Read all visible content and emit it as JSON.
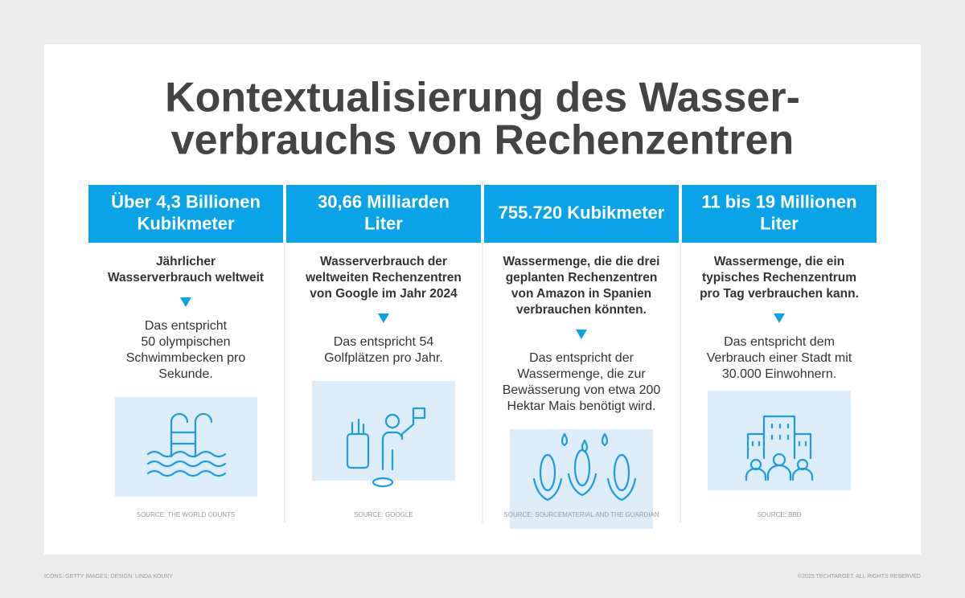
{
  "title": [
    "Kontextualisierung des Wasser-",
    "verbrauchs von Rechenzentren"
  ],
  "columns": [
    {
      "heading": [
        "Über 4,3 Billionen",
        "Kubikmeter"
      ],
      "description": [
        "Jährlicher",
        "Wasserverbrauch weltweit"
      ],
      "equivalent": [
        "Das entspricht",
        "50 olympischen",
        "Schwimmbecken pro",
        "Sekunde."
      ],
      "source": "SOURCE: THE WORLD COUNTS"
    },
    {
      "heading": [
        "30,66 Milliarden",
        "Liter"
      ],
      "description": [
        "Wasserverbrauch der",
        "weltweiten Rechenzentren",
        "von Google im Jahr 2024"
      ],
      "equivalent": [
        "Das entspricht 54",
        "Golfplätzen pro Jahr."
      ],
      "source": "SOURCE: GOOGLE"
    },
    {
      "heading": [
        "755.720 Kubikmeter"
      ],
      "description": [
        "Wassermenge, die die drei",
        "geplanten Rechenzentren",
        "von Amazon in Spanien",
        "verbrauchen könnten."
      ],
      "equivalent": [
        "Das entspricht der",
        "Wassermenge, die zur",
        "Bewässerung von etwa 200",
        "Hektar Mais benötigt wird."
      ],
      "source": "SOURCE: SOURCEMATERIAL AND THE GUARDIAN"
    },
    {
      "heading": [
        "11 bis 19 Millionen",
        "Liter"
      ],
      "description": [
        "Wassermenge, die ein",
        "typisches Rechenzentrum",
        "pro Tag verbrauchen kann."
      ],
      "equivalent": [
        "Das entspricht dem",
        "Verbrauch einer Stadt mit",
        "30.000 Einwohnern."
      ],
      "source": "SOURCE: BBD"
    }
  ],
  "footer": {
    "left": "ICONS: GETTY IMAGES; DESIGN: LINDA KOURY",
    "right": "©2025 TECHTARGET. ALL RIGHTS RESERVED"
  }
}
